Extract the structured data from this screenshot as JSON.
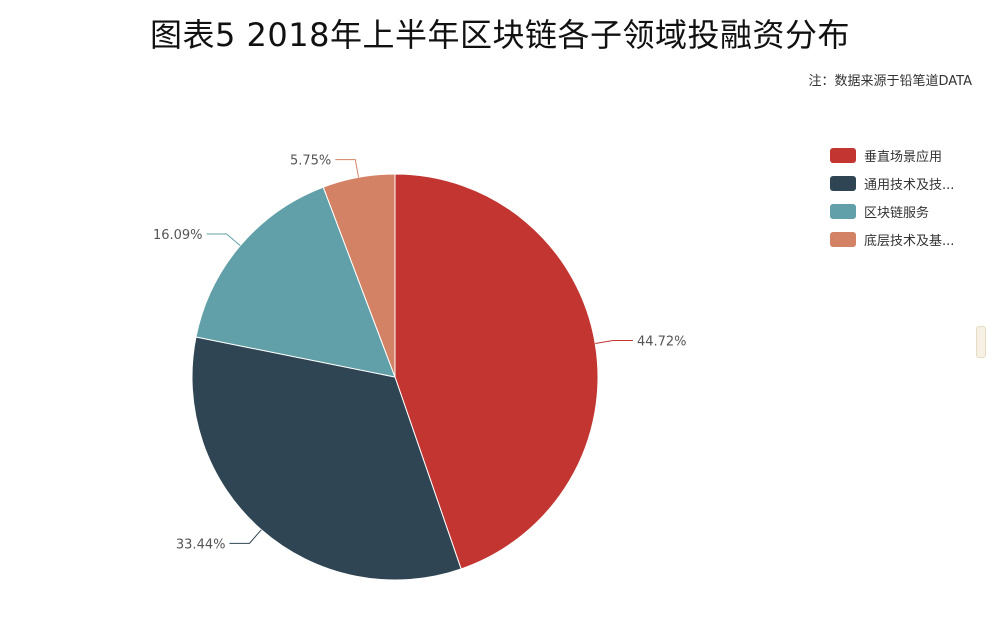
{
  "chart_data": {
    "type": "pie",
    "title": "图表5 2018年上半年区块链各子领域投融资分布",
    "source": "注：数据来源于铅笔道DATA",
    "legend_position": "right-top",
    "slices": [
      {
        "name": "垂直场景应用",
        "value": 44.72,
        "label": "44.72%",
        "color": "#c23531"
      },
      {
        "name": "通用技术及技...",
        "value": 33.44,
        "label": "33.44%",
        "color": "#2f4554"
      },
      {
        "name": "区块链服务",
        "value": 16.09,
        "label": "16.09%",
        "color": "#61a0a8"
      },
      {
        "name": "底层技术及基...",
        "value": 5.75,
        "label": "5.75%",
        "color": "#d48265"
      }
    ]
  }
}
